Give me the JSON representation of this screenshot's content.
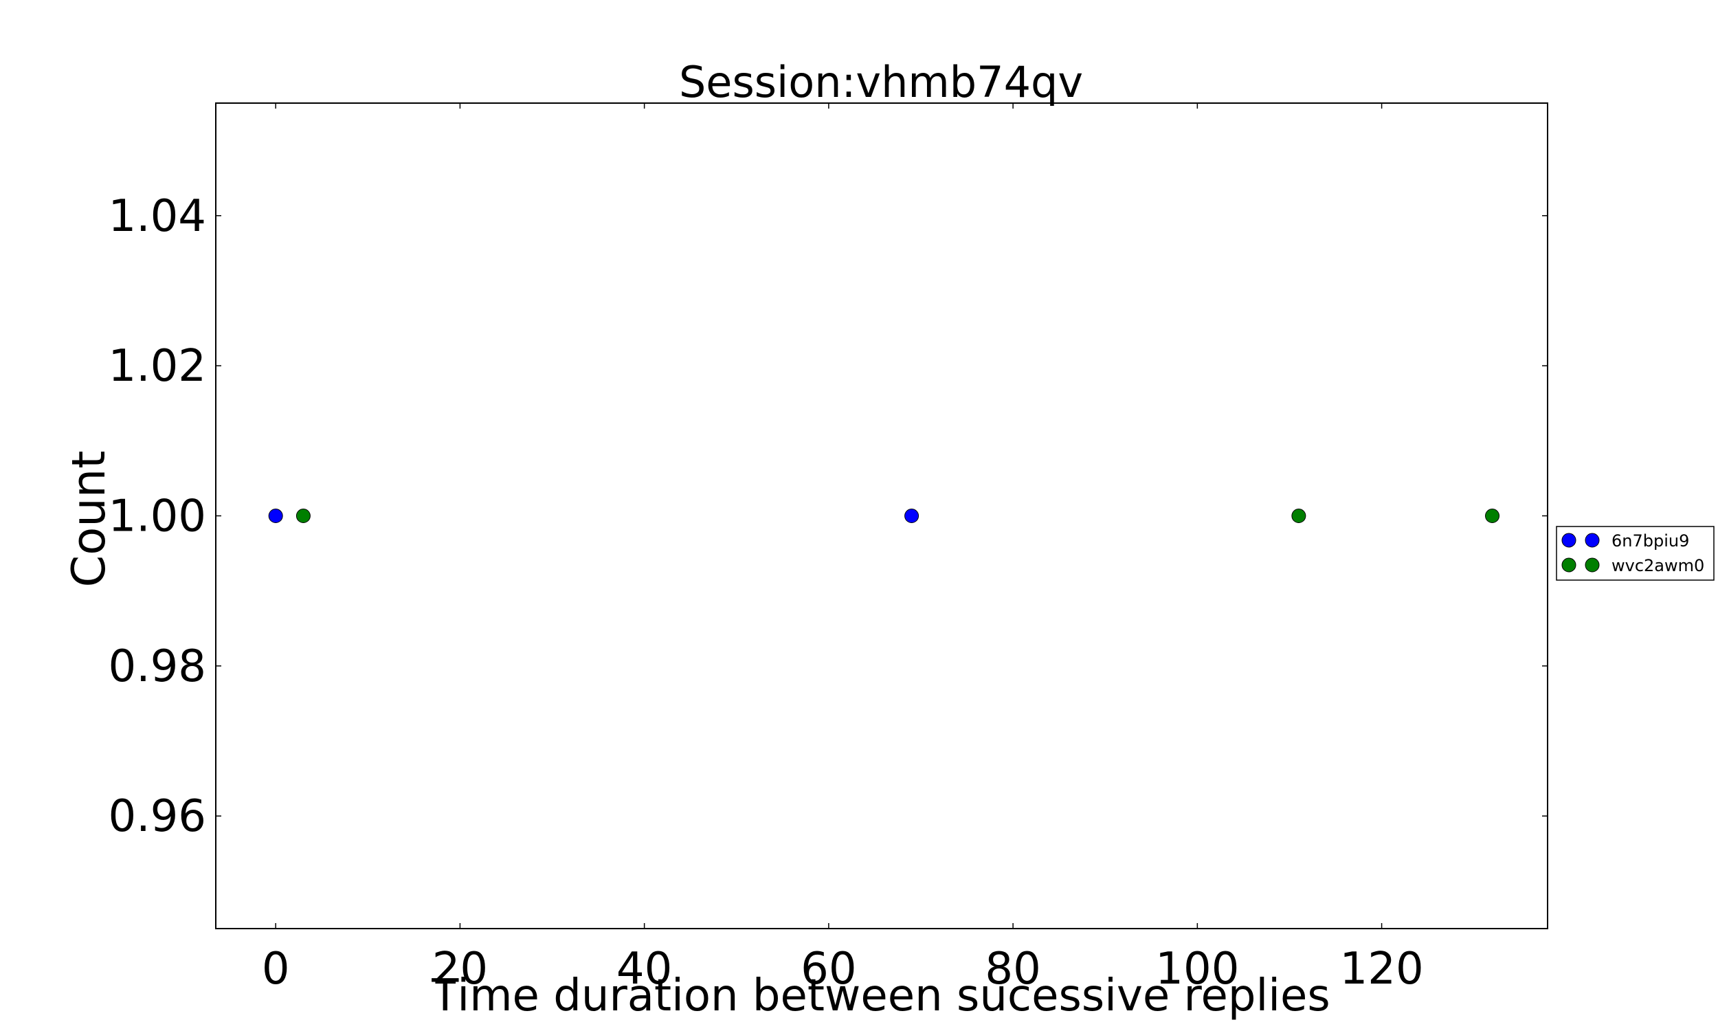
{
  "chart_data": {
    "type": "scatter",
    "title": "Session:vhmb74qv",
    "xlabel": "Time duration between sucessive replies",
    "ylabel": "Count",
    "xlim": [
      -6.5,
      138
    ],
    "ylim": [
      0.945,
      1.055
    ],
    "xticks": [
      0,
      20,
      40,
      60,
      80,
      100,
      120
    ],
    "xtick_labels": [
      "0",
      "20",
      "40",
      "60",
      "80",
      "100",
      "120"
    ],
    "yticks": [
      0.96,
      0.98,
      1.0,
      1.02,
      1.04
    ],
    "ytick_labels": [
      "0.96",
      "0.98",
      "1.00",
      "1.02",
      "1.04"
    ],
    "grid": false,
    "legend_position": "right, outside plot",
    "series": [
      {
        "name": "6n7bpiu9",
        "color": "#0000ff",
        "points": [
          [
            0,
            1.0
          ],
          [
            69,
            1.0
          ]
        ]
      },
      {
        "name": "wvc2awm0",
        "color": "#007f00",
        "points": [
          [
            3,
            1.0
          ],
          [
            111,
            1.0
          ],
          [
            132,
            1.0
          ]
        ]
      }
    ]
  }
}
